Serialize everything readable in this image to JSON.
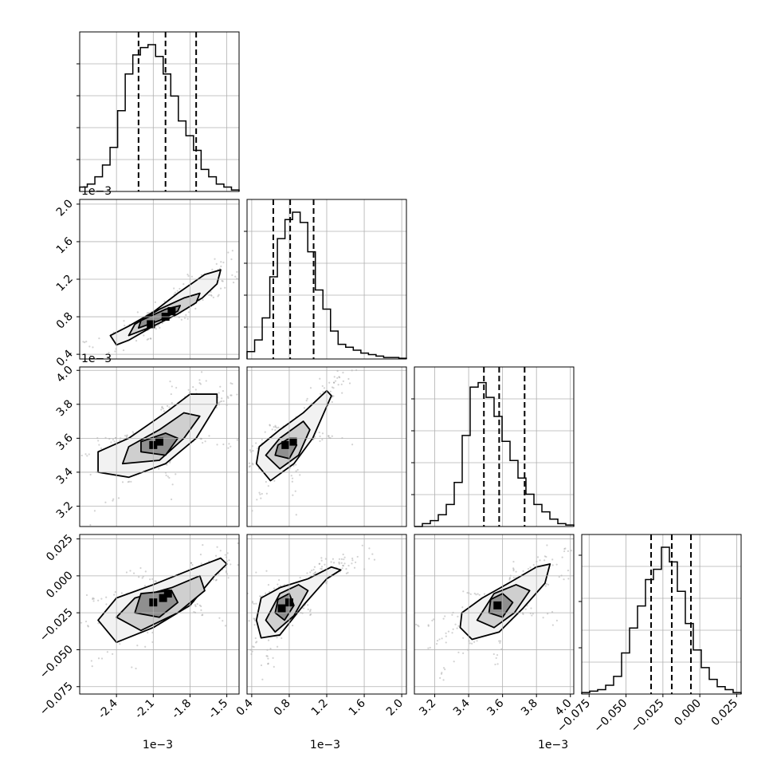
{
  "chart_data": {
    "type": "corner",
    "style": {
      "hist_color": "#000000",
      "contour_color": "#000000",
      "point_color": "#7f7f7f",
      "grid": true
    },
    "params": [
      {
        "range": [
          -2.7,
          -1.4
        ],
        "ticks": [
          "-2.4",
          "-2.1",
          "-1.8",
          "-1.5"
        ],
        "tick_values": [
          -2.4,
          -2.1,
          -1.8,
          -1.5
        ],
        "offset": "1e−3"
      },
      {
        "range": [
          0.35,
          2.05
        ],
        "ticks": [
          "0.4",
          "0.8",
          "1.2",
          "1.6",
          "2.0"
        ],
        "tick_values": [
          0.4,
          0.8,
          1.2,
          1.6,
          2.0
        ],
        "offset": "1e−3"
      },
      {
        "range": [
          3.08,
          4.02
        ],
        "ticks": [
          "3.2",
          "3.4",
          "3.6",
          "3.8",
          "4.0"
        ],
        "tick_values": [
          3.2,
          3.4,
          3.6,
          3.8,
          4.0
        ],
        "offset": "1e−3"
      },
      {
        "range": [
          -0.08,
          0.028
        ],
        "ticks": [
          "−0.075",
          "−0.050",
          "−0.025",
          "0.000",
          "0.025"
        ],
        "tick_values": [
          -0.075,
          -0.05,
          -0.025,
          0.0,
          0.025
        ],
        "offset": ""
      }
    ],
    "histograms": [
      {
        "quantiles": [
          -2.22,
          -2.0,
          -1.75
        ],
        "counts": [
          0.03,
          0.05,
          0.1,
          0.18,
          0.3,
          0.55,
          0.8,
          0.93,
          0.98,
          1.0,
          0.92,
          0.8,
          0.65,
          0.48,
          0.38,
          0.28,
          0.15,
          0.1,
          0.05,
          0.03,
          0.01
        ]
      },
      {
        "quantiles": [
          0.63,
          0.81,
          1.06
        ],
        "counts": [
          0.05,
          0.13,
          0.28,
          0.56,
          0.82,
          0.95,
          1.0,
          0.93,
          0.73,
          0.47,
          0.34,
          0.19,
          0.1,
          0.08,
          0.06,
          0.04,
          0.03,
          0.02,
          0.01,
          0.01,
          0.005
        ]
      },
      {
        "quantiles": [
          3.49,
          3.58,
          3.73
        ],
        "counts": [
          0.0,
          0.02,
          0.04,
          0.08,
          0.15,
          0.3,
          0.62,
          0.95,
          0.98,
          0.88,
          0.75,
          0.58,
          0.45,
          0.33,
          0.22,
          0.15,
          0.1,
          0.05,
          0.02,
          0.01
        ]
      },
      {
        "quantiles": [
          -0.033,
          -0.019,
          -0.006
        ],
        "counts": [
          0.01,
          0.02,
          0.03,
          0.06,
          0.12,
          0.28,
          0.45,
          0.6,
          0.78,
          0.85,
          1.0,
          0.9,
          0.7,
          0.48,
          0.3,
          0.18,
          0.1,
          0.05,
          0.03,
          0.01
        ]
      }
    ],
    "pairs": [
      {
        "x": 0,
        "y": 1,
        "center": [
          -2.05,
          0.8
        ],
        "contours": [
          [
            [
              -2.4,
              0.5
            ],
            [
              -2.3,
              0.55
            ],
            [
              -2.1,
              0.7
            ],
            [
              -1.9,
              0.85
            ],
            [
              -1.7,
              1.0
            ],
            [
              -1.58,
              1.15
            ],
            [
              -1.55,
              1.3
            ],
            [
              -1.68,
              1.25
            ],
            [
              -1.9,
              1.05
            ],
            [
              -2.1,
              0.85
            ],
            [
              -2.3,
              0.7
            ],
            [
              -2.45,
              0.6
            ]
          ],
          [
            [
              -2.3,
              0.6
            ],
            [
              -2.1,
              0.7
            ],
            [
              -1.9,
              0.83
            ],
            [
              -1.75,
              0.95
            ],
            [
              -1.72,
              1.05
            ],
            [
              -1.85,
              1.0
            ],
            [
              -2.05,
              0.88
            ],
            [
              -2.25,
              0.72
            ]
          ],
          [
            [
              -2.22,
              0.68
            ],
            [
              -2.05,
              0.76
            ],
            [
              -1.9,
              0.86
            ],
            [
              -1.88,
              0.92
            ],
            [
              -2.0,
              0.88
            ],
            [
              -2.2,
              0.76
            ]
          ]
        ],
        "peaks": [
          [
            -2.12,
            0.72
          ],
          [
            -2.0,
            0.8
          ],
          [
            -1.95,
            0.86
          ]
        ]
      },
      {
        "x": 0,
        "y": 2,
        "center": [
          -2.05,
          3.57
        ],
        "contours": [
          [
            [
              -2.55,
              3.4
            ],
            [
              -2.3,
              3.37
            ],
            [
              -2.0,
              3.45
            ],
            [
              -1.75,
              3.6
            ],
            [
              -1.58,
              3.8
            ],
            [
              -1.58,
              3.86
            ],
            [
              -1.8,
              3.86
            ],
            [
              -2.0,
              3.75
            ],
            [
              -2.3,
              3.6
            ],
            [
              -2.55,
              3.52
            ]
          ],
          [
            [
              -2.35,
              3.45
            ],
            [
              -2.05,
              3.47
            ],
            [
              -1.85,
              3.6
            ],
            [
              -1.72,
              3.73
            ],
            [
              -1.85,
              3.75
            ],
            [
              -2.05,
              3.65
            ],
            [
              -2.3,
              3.55
            ]
          ],
          [
            [
              -2.2,
              3.52
            ],
            [
              -2.0,
              3.5
            ],
            [
              -1.9,
              3.6
            ],
            [
              -2.0,
              3.63
            ],
            [
              -2.2,
              3.58
            ]
          ]
        ],
        "peaks": [
          [
            -2.1,
            3.56
          ],
          [
            -2.05,
            3.58
          ]
        ]
      },
      {
        "x": 1,
        "y": 2,
        "center": [
          0.8,
          3.56
        ],
        "contours": [
          [
            [
              0.45,
              3.45
            ],
            [
              0.6,
              3.35
            ],
            [
              0.85,
              3.45
            ],
            [
              1.05,
              3.6
            ],
            [
              1.25,
              3.85
            ],
            [
              1.2,
              3.88
            ],
            [
              0.95,
              3.75
            ],
            [
              0.7,
              3.65
            ],
            [
              0.48,
              3.55
            ]
          ],
          [
            [
              0.55,
              3.5
            ],
            [
              0.7,
              3.42
            ],
            [
              0.9,
              3.5
            ],
            [
              1.02,
              3.65
            ],
            [
              0.95,
              3.7
            ],
            [
              0.7,
              3.6
            ]
          ],
          [
            [
              0.65,
              3.5
            ],
            [
              0.8,
              3.48
            ],
            [
              0.88,
              3.56
            ],
            [
              0.8,
              3.6
            ],
            [
              0.68,
              3.56
            ]
          ]
        ],
        "peaks": [
          [
            0.76,
            3.56
          ],
          [
            0.84,
            3.58
          ]
        ]
      },
      {
        "x": 0,
        "y": 3,
        "center": [
          -2.05,
          -0.018
        ],
        "contours": [
          [
            [
              -2.55,
              -0.03
            ],
            [
              -2.4,
              -0.045
            ],
            [
              -2.1,
              -0.035
            ],
            [
              -1.8,
              -0.02
            ],
            [
              -1.6,
              0.0
            ],
            [
              -1.5,
              0.008
            ],
            [
              -1.55,
              0.012
            ],
            [
              -1.8,
              0.004
            ],
            [
              -2.1,
              -0.006
            ],
            [
              -2.4,
              -0.015
            ]
          ],
          [
            [
              -2.4,
              -0.028
            ],
            [
              -2.2,
              -0.037
            ],
            [
              -1.9,
              -0.025
            ],
            [
              -1.68,
              -0.01
            ],
            [
              -1.72,
              0.0
            ],
            [
              -1.95,
              -0.008
            ],
            [
              -2.25,
              -0.015
            ]
          ],
          [
            [
              -2.25,
              -0.025
            ],
            [
              -2.05,
              -0.028
            ],
            [
              -1.9,
              -0.018
            ],
            [
              -1.95,
              -0.01
            ],
            [
              -2.2,
              -0.012
            ]
          ]
        ],
        "peaks": [
          [
            -2.1,
            -0.018
          ],
          [
            -2.02,
            -0.015
          ],
          [
            -1.98,
            -0.012
          ]
        ]
      },
      {
        "x": 1,
        "y": 3,
        "center": [
          0.75,
          -0.018
        ],
        "contours": [
          [
            [
              0.45,
              -0.03
            ],
            [
              0.5,
              -0.042
            ],
            [
              0.7,
              -0.04
            ],
            [
              0.95,
              -0.02
            ],
            [
              1.2,
              -0.002
            ],
            [
              1.35,
              0.004
            ],
            [
              1.25,
              0.006
            ],
            [
              1.0,
              -0.002
            ],
            [
              0.7,
              -0.008
            ],
            [
              0.5,
              -0.015
            ]
          ],
          [
            [
              0.55,
              -0.03
            ],
            [
              0.65,
              -0.038
            ],
            [
              0.85,
              -0.027
            ],
            [
              1.0,
              -0.01
            ],
            [
              0.9,
              -0.006
            ],
            [
              0.7,
              -0.012
            ]
          ],
          [
            [
              0.65,
              -0.025
            ],
            [
              0.75,
              -0.03
            ],
            [
              0.85,
              -0.02
            ],
            [
              0.8,
              -0.012
            ],
            [
              0.68,
              -0.016
            ]
          ]
        ],
        "peaks": [
          [
            0.72,
            -0.022
          ],
          [
            0.8,
            -0.018
          ]
        ]
      },
      {
        "x": 2,
        "y": 3,
        "center": [
          3.57,
          -0.02
        ],
        "contours": [
          [
            [
              3.35,
              -0.035
            ],
            [
              3.42,
              -0.043
            ],
            [
              3.58,
              -0.038
            ],
            [
              3.72,
              -0.022
            ],
            [
              3.85,
              -0.005
            ],
            [
              3.88,
              0.008
            ],
            [
              3.8,
              0.006
            ],
            [
              3.65,
              -0.004
            ],
            [
              3.48,
              -0.015
            ],
            [
              3.36,
              -0.025
            ]
          ],
          [
            [
              3.45,
              -0.03
            ],
            [
              3.55,
              -0.035
            ],
            [
              3.67,
              -0.025
            ],
            [
              3.76,
              -0.01
            ],
            [
              3.68,
              -0.006
            ],
            [
              3.55,
              -0.012
            ]
          ],
          [
            [
              3.52,
              -0.025
            ],
            [
              3.6,
              -0.028
            ],
            [
              3.66,
              -0.018
            ],
            [
              3.6,
              -0.012
            ],
            [
              3.53,
              -0.016
            ]
          ]
        ],
        "peaks": [
          [
            3.57,
            -0.02
          ]
        ]
      }
    ]
  }
}
